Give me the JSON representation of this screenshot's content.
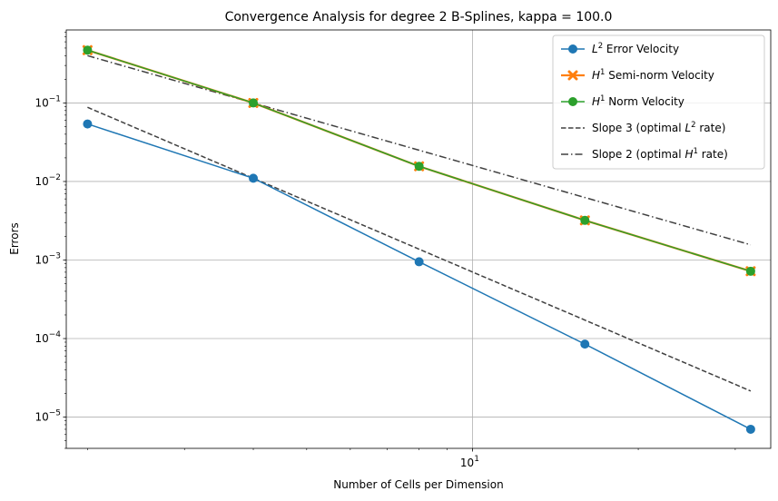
{
  "chart_data": {
    "type": "line",
    "title": "Convergence Analysis for degree 2 B-Splines, kappa = 100.0",
    "xlabel": "Number of Cells per Dimension",
    "ylabel": "Errors",
    "xscale": "log",
    "yscale": "log",
    "xlim": [
      1.83,
      34.8
    ],
    "ylim": [
      4e-06,
      0.85
    ],
    "x_ticks": [
      {
        "value": 10,
        "base": "10",
        "exp": "1"
      }
    ],
    "y_ticks": [
      {
        "value": 1e-05,
        "base": "10",
        "exp": "−5"
      },
      {
        "value": 0.0001,
        "base": "10",
        "exp": "−4"
      },
      {
        "value": 0.001,
        "base": "10",
        "exp": "−3"
      },
      {
        "value": 0.01,
        "base": "10",
        "exp": "−2"
      },
      {
        "value": 0.1,
        "base": "10",
        "exp": "−1"
      }
    ],
    "grid": true,
    "legend_position": "upper right",
    "x": [
      2,
      4,
      8,
      16,
      32
    ],
    "series": [
      {
        "name": "L² Error Velocity",
        "color": "#1f77b4",
        "style": "solid",
        "marker": "circle",
        "values": [
          0.054,
          0.011,
          0.00095,
          8.5e-05,
          7e-06
        ],
        "legend": {
          "pre": "",
          "sym": "L",
          "sup": "2",
          "post": " Error Velocity"
        }
      },
      {
        "name": "H¹ Semi-norm Velocity",
        "color": "#ff7f0e",
        "style": "solid",
        "marker": "x",
        "values": [
          0.47,
          0.1,
          0.0156,
          0.0032,
          0.00072
        ],
        "legend": {
          "pre": "",
          "sym": "H",
          "sup": "1",
          "post": " Semi-norm Velocity"
        }
      },
      {
        "name": "H¹ Norm Velocity",
        "color": "#2ca02c",
        "style": "solid",
        "marker": "circle",
        "values": [
          0.47,
          0.1,
          0.0156,
          0.0032,
          0.00072
        ],
        "legend": {
          "pre": "",
          "sym": "H",
          "sup": "1",
          "post": " Norm Velocity"
        }
      },
      {
        "name": "Slope 3 (optimal L² rate)",
        "color": "#404040",
        "style": "dashed",
        "marker": "none",
        "values": [
          0.088,
          0.011,
          0.001375,
          0.000172,
          2.15e-05
        ],
        "legend": {
          "pre": "Slope 3 (optimal ",
          "sym": "L",
          "sup": "2",
          "post": " rate)"
        }
      },
      {
        "name": "Slope 2 (optimal H¹ rate)",
        "color": "#404040",
        "style": "dashdot",
        "marker": "none",
        "values": [
          0.4,
          0.1,
          0.025,
          0.00625,
          0.0015625
        ],
        "legend": {
          "pre": "Slope 2 (optimal ",
          "sym": "H",
          "sup": "1",
          "post": " rate)"
        }
      }
    ]
  }
}
